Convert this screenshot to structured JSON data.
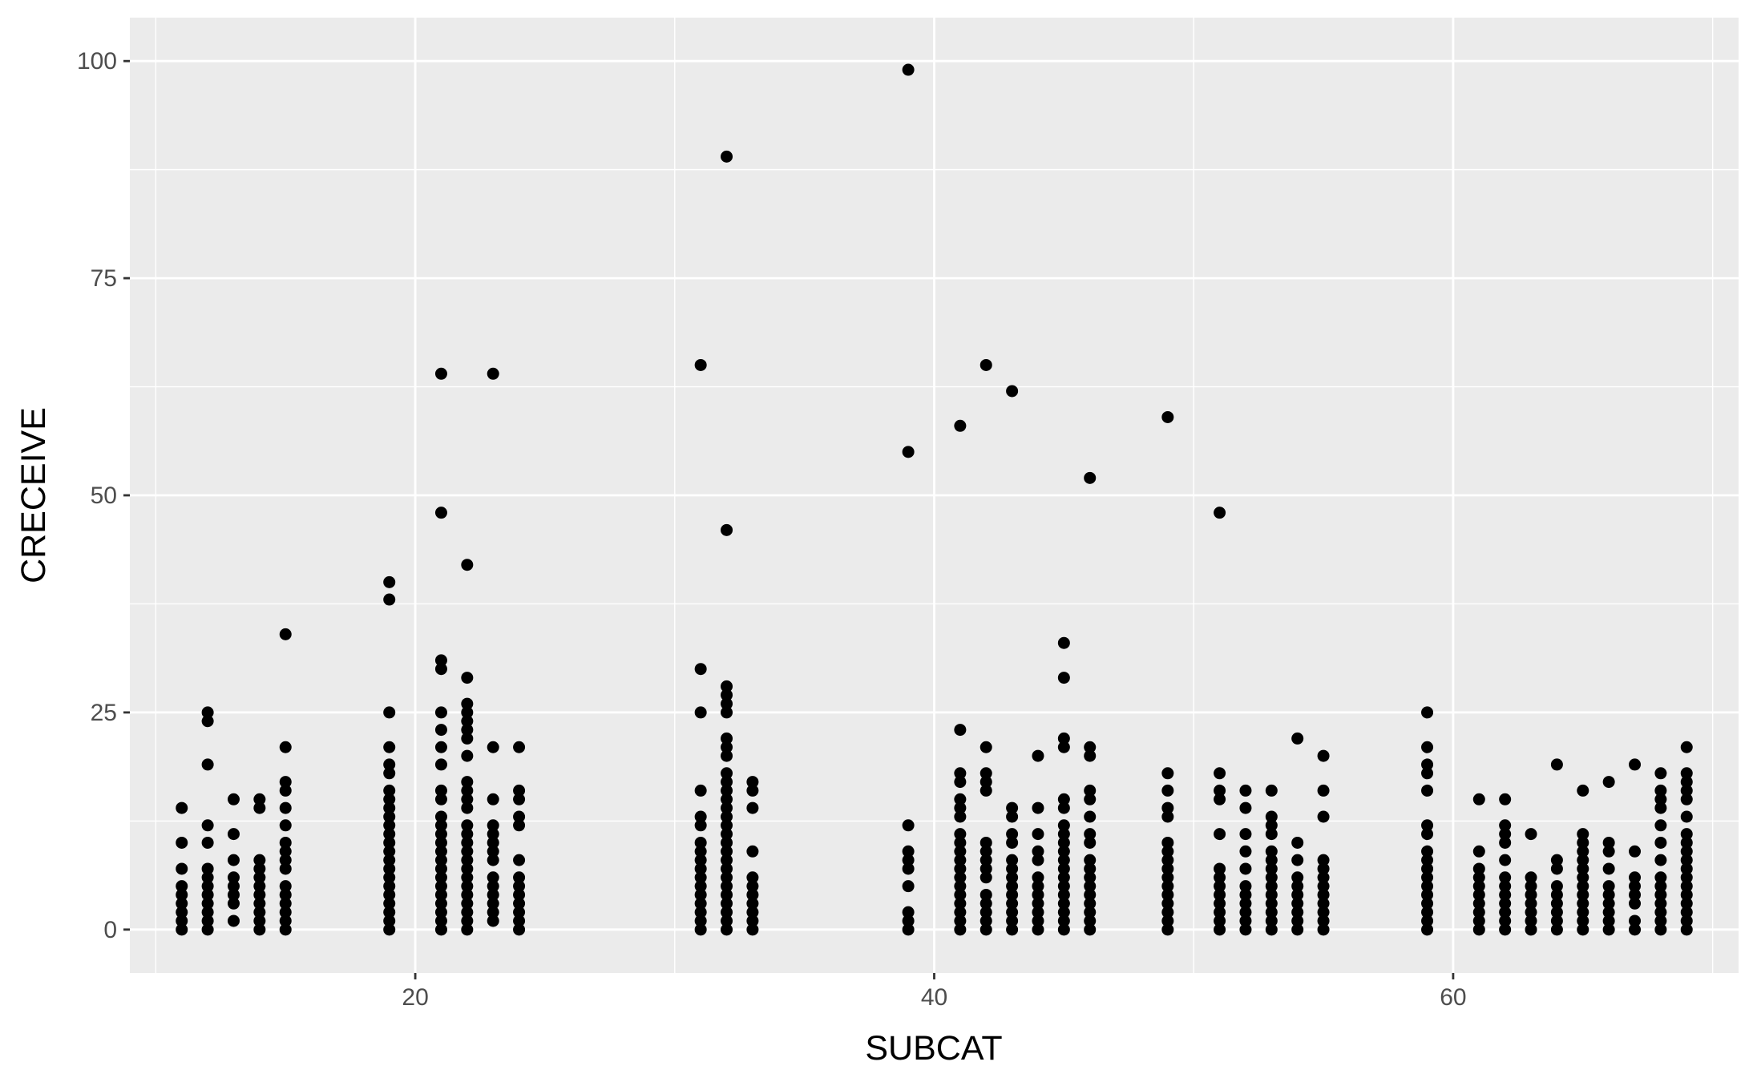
{
  "chart_data": {
    "type": "scatter",
    "title": "",
    "xlabel": "SUBCAT",
    "ylabel": "CRECEIVE",
    "xlim": [
      9,
      71
    ],
    "ylim": [
      -5,
      105
    ],
    "x_ticks": [
      20,
      40,
      60
    ],
    "x_tick_labels": [
      "20",
      "40",
      "60"
    ],
    "y_ticks": [
      0,
      25,
      50,
      75,
      100
    ],
    "y_tick_labels": [
      "0",
      "25",
      "50",
      "75",
      "100"
    ],
    "grid": true,
    "legend": "none",
    "point_color": "#000000",
    "panel_background": "#ebebeb",
    "grid_color": "#ffffff",
    "columns": [
      {
        "x": 11,
        "y": [
          0,
          1,
          2,
          3,
          4,
          5,
          7,
          10,
          14
        ]
      },
      {
        "x": 12,
        "y": [
          0,
          1,
          2,
          3,
          4,
          5,
          6,
          7,
          10,
          12,
          19,
          24,
          25
        ]
      },
      {
        "x": 13,
        "y": [
          1,
          3,
          4,
          5,
          6,
          8,
          11,
          15
        ]
      },
      {
        "x": 14,
        "y": [
          0,
          1,
          2,
          3,
          4,
          5,
          6,
          7,
          8,
          14,
          15
        ]
      },
      {
        "x": 15,
        "y": [
          0,
          1,
          2,
          3,
          4,
          5,
          7,
          8,
          9,
          10,
          12,
          14,
          16,
          17,
          21,
          34
        ]
      },
      {
        "x": 19,
        "y": [
          0,
          1,
          2,
          3,
          4,
          5,
          6,
          7,
          8,
          9,
          10,
          11,
          12,
          13,
          14,
          15,
          16,
          18,
          19,
          21,
          25,
          38,
          40
        ]
      },
      {
        "x": 21,
        "y": [
          0,
          1,
          2,
          3,
          4,
          5,
          6,
          7,
          8,
          9,
          10,
          11,
          12,
          13,
          15,
          16,
          19,
          21,
          23,
          25,
          30,
          31,
          48,
          64
        ]
      },
      {
        "x": 22,
        "y": [
          0,
          1,
          2,
          3,
          4,
          5,
          6,
          7,
          8,
          9,
          10,
          11,
          12,
          14,
          15,
          16,
          17,
          20,
          22,
          23,
          24,
          25,
          26,
          29,
          42
        ]
      },
      {
        "x": 23,
        "y": [
          1,
          2,
          3,
          4,
          5,
          6,
          8,
          9,
          10,
          11,
          12,
          15,
          21,
          64
        ]
      },
      {
        "x": 24,
        "y": [
          0,
          1,
          2,
          3,
          4,
          5,
          6,
          8,
          12,
          13,
          15,
          16,
          21
        ]
      },
      {
        "x": 31,
        "y": [
          0,
          1,
          2,
          3,
          4,
          5,
          6,
          7,
          8,
          9,
          10,
          12,
          13,
          16,
          25,
          30,
          65
        ]
      },
      {
        "x": 32,
        "y": [
          0,
          1,
          2,
          3,
          4,
          5,
          6,
          7,
          8,
          9,
          10,
          11,
          12,
          13,
          14,
          15,
          16,
          17,
          18,
          20,
          21,
          22,
          25,
          26,
          27,
          28,
          46,
          89
        ]
      },
      {
        "x": 33,
        "y": [
          0,
          1,
          2,
          3,
          4,
          5,
          6,
          9,
          14,
          16,
          17
        ]
      },
      {
        "x": 39,
        "y": [
          0,
          1,
          2,
          5,
          7,
          8,
          9,
          12,
          55,
          99
        ]
      },
      {
        "x": 41,
        "y": [
          0,
          1,
          2,
          3,
          4,
          5,
          6,
          7,
          8,
          9,
          10,
          11,
          13,
          14,
          15,
          17,
          18,
          23,
          58
        ]
      },
      {
        "x": 42,
        "y": [
          0,
          1,
          2,
          3,
          4,
          6,
          7,
          8,
          9,
          10,
          16,
          17,
          18,
          21,
          65
        ]
      },
      {
        "x": 43,
        "y": [
          0,
          1,
          2,
          3,
          4,
          5,
          6,
          7,
          8,
          10,
          11,
          13,
          14,
          62
        ]
      },
      {
        "x": 44,
        "y": [
          0,
          1,
          2,
          3,
          4,
          5,
          6,
          8,
          9,
          11,
          14,
          20
        ]
      },
      {
        "x": 45,
        "y": [
          0,
          1,
          2,
          3,
          4,
          5,
          6,
          7,
          8,
          9,
          10,
          11,
          12,
          14,
          15,
          21,
          22,
          29,
          33
        ]
      },
      {
        "x": 46,
        "y": [
          0,
          1,
          2,
          3,
          4,
          5,
          6,
          7,
          8,
          10,
          11,
          13,
          15,
          16,
          20,
          21,
          52
        ]
      },
      {
        "x": 49,
        "y": [
          0,
          1,
          2,
          3,
          4,
          5,
          6,
          7,
          8,
          9,
          10,
          13,
          14,
          16,
          18,
          59
        ]
      },
      {
        "x": 51,
        "y": [
          0,
          1,
          2,
          3,
          4,
          5,
          6,
          7,
          11,
          15,
          16,
          18,
          48
        ]
      },
      {
        "x": 52,
        "y": [
          0,
          1,
          2,
          3,
          4,
          5,
          7,
          9,
          11,
          14,
          16
        ]
      },
      {
        "x": 53,
        "y": [
          0,
          1,
          2,
          3,
          4,
          5,
          6,
          7,
          8,
          9,
          11,
          12,
          13,
          16
        ]
      },
      {
        "x": 54,
        "y": [
          0,
          1,
          2,
          3,
          4,
          5,
          6,
          8,
          10,
          22
        ]
      },
      {
        "x": 55,
        "y": [
          0,
          1,
          2,
          3,
          4,
          5,
          6,
          7,
          8,
          13,
          16,
          20
        ]
      },
      {
        "x": 59,
        "y": [
          0,
          1,
          2,
          3,
          4,
          5,
          6,
          7,
          8,
          9,
          11,
          12,
          16,
          18,
          19,
          21,
          25
        ]
      },
      {
        "x": 61,
        "y": [
          0,
          1,
          2,
          3,
          4,
          5,
          6,
          7,
          9,
          15
        ]
      },
      {
        "x": 62,
        "y": [
          0,
          1,
          2,
          3,
          4,
          5,
          6,
          8,
          10,
          11,
          12,
          15
        ]
      },
      {
        "x": 63,
        "y": [
          0,
          1,
          2,
          3,
          4,
          5,
          6,
          11
        ]
      },
      {
        "x": 64,
        "y": [
          0,
          1,
          2,
          3,
          4,
          5,
          7,
          8,
          19
        ]
      },
      {
        "x": 65,
        "y": [
          0,
          1,
          2,
          3,
          4,
          5,
          6,
          7,
          8,
          9,
          10,
          11,
          16
        ]
      },
      {
        "x": 66,
        "y": [
          0,
          1,
          2,
          3,
          4,
          5,
          7,
          9,
          10,
          17
        ]
      },
      {
        "x": 67,
        "y": [
          0,
          1,
          3,
          4,
          5,
          6,
          9,
          19
        ]
      },
      {
        "x": 68,
        "y": [
          0,
          1,
          2,
          3,
          4,
          5,
          6,
          8,
          10,
          12,
          14,
          15,
          16,
          18
        ]
      },
      {
        "x": 69,
        "y": [
          0,
          1,
          2,
          3,
          4,
          5,
          6,
          7,
          8,
          9,
          10,
          11,
          13,
          15,
          16,
          17,
          18,
          21
        ]
      }
    ]
  }
}
